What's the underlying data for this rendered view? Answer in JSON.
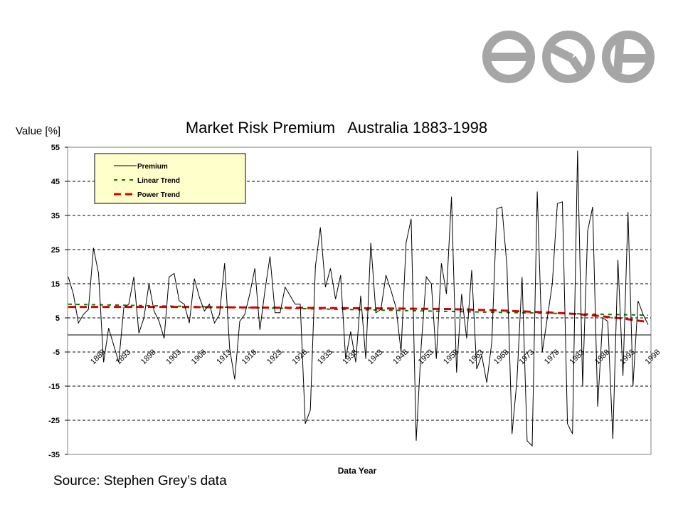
{
  "logo": {
    "name": "company-logo",
    "color": "#a6a6a6"
  },
  "source_note": "Source: Stephen Grey’s data",
  "chart_data": {
    "type": "line",
    "title": "Market Risk Premium   Australia 1883-1998",
    "ylabel": "Value [%]",
    "xlabel": "Data Year",
    "ylim": [
      -35,
      55
    ],
    "yticks": [
      55,
      45,
      35,
      25,
      15,
      5,
      -5,
      -15,
      -25,
      -35
    ],
    "xtick_labels": [
      "1888",
      "1893",
      "1898",
      "1903",
      "1908",
      "1913",
      "1918",
      "1923",
      "1928",
      "1933",
      "1938",
      "1943",
      "1948",
      "1953",
      "1958",
      "1963",
      "1968",
      "1973",
      "1978",
      "1983",
      "1988",
      "1993",
      "1998"
    ],
    "x_start": 1883,
    "x_end": 1998,
    "grid": "horizontal dashed",
    "legend_position": "top-left",
    "series": [
      {
        "name": "Premium",
        "color": "#000000",
        "style": "solid",
        "x": [
          1883,
          1884,
          1885,
          1886,
          1887,
          1888,
          1889,
          1890,
          1891,
          1892,
          1893,
          1894,
          1895,
          1896,
          1897,
          1898,
          1899,
          1900,
          1901,
          1902,
          1903,
          1904,
          1905,
          1906,
          1907,
          1908,
          1909,
          1910,
          1911,
          1912,
          1913,
          1914,
          1915,
          1916,
          1917,
          1918,
          1919,
          1920,
          1921,
          1922,
          1923,
          1924,
          1925,
          1926,
          1927,
          1928,
          1929,
          1930,
          1931,
          1932,
          1933,
          1934,
          1935,
          1936,
          1937,
          1938,
          1939,
          1940,
          1941,
          1942,
          1943,
          1944,
          1945,
          1946,
          1947,
          1948,
          1949,
          1950,
          1951,
          1952,
          1953,
          1954,
          1955,
          1956,
          1957,
          1958,
          1959,
          1960,
          1961,
          1962,
          1963,
          1964,
          1965,
          1966,
          1967,
          1968,
          1969,
          1970,
          1971,
          1972,
          1973,
          1974,
          1975,
          1976,
          1977,
          1978,
          1979,
          1980,
          1981,
          1982,
          1983,
          1984,
          1985,
          1986,
          1987,
          1988,
          1989,
          1990,
          1991,
          1992,
          1993,
          1994,
          1995,
          1996,
          1997,
          1998
        ],
        "values": [
          17,
          12,
          3.5,
          6,
          7.5,
          25.5,
          18,
          -8,
          2,
          -3,
          -8,
          8,
          9,
          17,
          0.5,
          5,
          15,
          7,
          4,
          -1,
          17,
          18,
          10,
          9,
          3.5,
          16.5,
          11,
          7,
          9,
          3.5,
          6,
          21,
          -4,
          -13,
          4,
          6,
          12,
          19.5,
          1.5,
          13,
          23,
          6.5,
          6.5,
          14,
          11.5,
          9,
          9,
          -26,
          -22,
          20,
          31.5,
          14,
          19.5,
          10.5,
          17.5,
          -7,
          1,
          -8,
          11.5,
          -7,
          27,
          6.5,
          7.5,
          17.5,
          13,
          8,
          -5,
          27,
          34,
          -31,
          -3,
          17,
          15,
          -7,
          21,
          12,
          40.5,
          -11,
          12,
          -1,
          19,
          -10,
          -6,
          -14,
          -2,
          37,
          37.5,
          20,
          -29,
          -13,
          17,
          -31,
          -32.5,
          42,
          -5,
          5,
          15,
          38.5,
          39,
          -26,
          -29,
          54,
          -15,
          30.5,
          37.5,
          -21,
          5,
          4,
          -30.5,
          22,
          -12,
          36,
          -15,
          10,
          6,
          3
        ]
      },
      {
        "name": "Linear Trend",
        "color": "#008000",
        "style": "dashed",
        "x": [
          1883,
          1998
        ],
        "values": [
          9,
          5.8
        ]
      },
      {
        "name": "Power Trend",
        "color": "#dd0000",
        "style": "dashed",
        "x": [
          1883,
          1903,
          1923,
          1943,
          1958,
          1968,
          1978,
          1983,
          1988,
          1993,
          1998
        ],
        "values": [
          8.2,
          8.2,
          8.0,
          7.8,
          7.6,
          7.2,
          6.6,
          6.2,
          5.6,
          4.8,
          3.8
        ]
      }
    ]
  }
}
